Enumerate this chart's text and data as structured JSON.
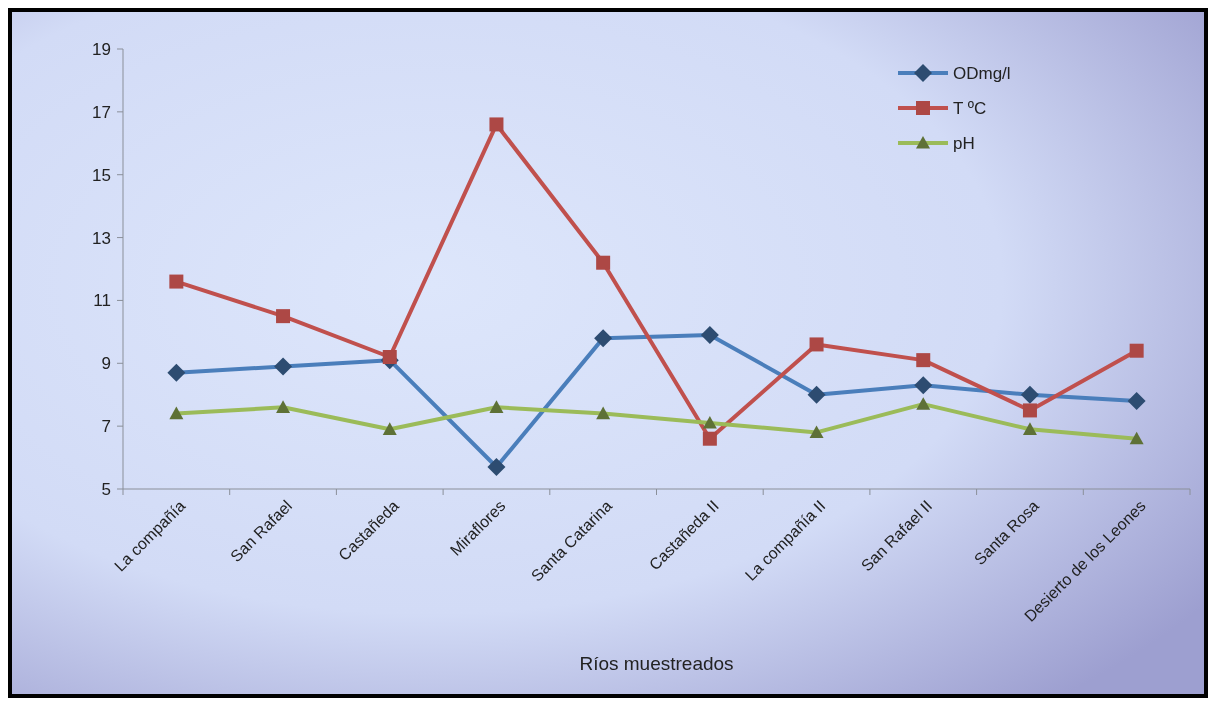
{
  "chart_data": {
    "type": "line",
    "xlabel": "Ríos muestreados",
    "categories": [
      "La compañía",
      "San Rafael",
      "Castañeda",
      "Miraflores",
      "Santa Catarina",
      "Castañeda II",
      "La compañía II",
      "San Rafael II",
      "Santa Rosa",
      "Desierto de los Leones"
    ],
    "series": [
      {
        "name": "ODmg/l",
        "color": "#4a7ebb",
        "marker": "diamond",
        "values": [
          8.7,
          8.9,
          9.1,
          5.7,
          9.8,
          9.9,
          8.0,
          8.3,
          8.0,
          7.8
        ]
      },
      {
        "name": "T ºC",
        "color": "#c0504d",
        "marker": "square",
        "values": [
          11.6,
          10.5,
          9.2,
          16.6,
          12.2,
          6.6,
          9.6,
          9.1,
          7.5,
          9.4
        ]
      },
      {
        "name": "pH",
        "color": "#9bbb59",
        "marker": "triangle",
        "values": [
          7.4,
          7.6,
          6.9,
          7.6,
          7.4,
          7.1,
          6.8,
          7.7,
          6.9,
          6.6
        ]
      }
    ],
    "ylim": [
      5,
      19
    ],
    "yticks": [
      5,
      7,
      9,
      11,
      13,
      15,
      17,
      19
    ],
    "grid": false,
    "legend": "top right"
  }
}
